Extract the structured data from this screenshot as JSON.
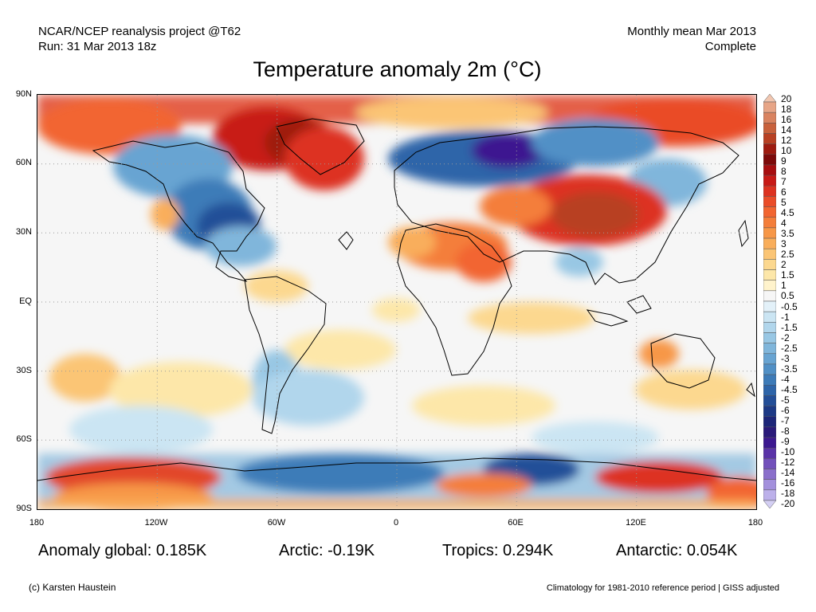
{
  "header": {
    "source": "NCAR/NCEP reanalysis project @T62",
    "run": "Run: 31 Mar 2013 18z",
    "period": "Monthly mean Mar 2013",
    "status": "Complete"
  },
  "title": "Temperature anomaly 2m (°C)",
  "map": {
    "projection": "equirectangular",
    "gridlines": "dotted",
    "lat_labels": [
      "90N",
      "60N",
      "30N",
      "EQ",
      "30S",
      "60S",
      "90S"
    ],
    "lon_labels": [
      "180",
      "120W",
      "60W",
      "0",
      "60E",
      "120E",
      "180"
    ]
  },
  "colorbar": {
    "levels": [
      "20",
      "18",
      "16",
      "14",
      "12",
      "10",
      "9",
      "8",
      "7",
      "6",
      "5",
      "4.5",
      "4",
      "3.5",
      "3",
      "2.5",
      "2",
      "1.5",
      "1",
      "0.5",
      "-0.5",
      "-1",
      "-1.5",
      "-2",
      "-2.5",
      "-3",
      "-3.5",
      "-4",
      "-4.5",
      "-5",
      "-6",
      "-7",
      "-8",
      "-9",
      "-10",
      "-12",
      "-14",
      "-16",
      "-18",
      "-20"
    ],
    "colors": [
      "#f1c6b0",
      "#e7a587",
      "#d98360",
      "#c8613c",
      "#b84023",
      "#9e1b10",
      "#7d0a0a",
      "#a80e10",
      "#c81a16",
      "#dd3220",
      "#ea4c28",
      "#f26530",
      "#f47e3a",
      "#f79747",
      "#f9ae5b",
      "#fbc575",
      "#fcd88f",
      "#fde7a9",
      "#fff3cc",
      "#f6f6f6",
      "#e3f1f9",
      "#cbe5f3",
      "#b1d6ec",
      "#98c7e4",
      "#80b6db",
      "#68a4d2",
      "#5190c6",
      "#3d7bb8",
      "#2e65a9",
      "#244f98",
      "#1d3a86",
      "#1d2679",
      "#2a1a7a",
      "#3c1890",
      "#5a33a8",
      "#7250bb",
      "#8a6fcb",
      "#a390dc",
      "#bcb0ea",
      "#d4cff4"
    ]
  },
  "stats": {
    "global": "Anomaly global: 0.185K",
    "arctic": "Arctic: -0.19K",
    "tropics": "Tropics: 0.294K",
    "antarctic": "Antarctic: 0.054K"
  },
  "footer": {
    "copyright": "(c) Karsten Haustein",
    "note": "Climatology for 1981-2010 reference period | GISS adjusted"
  }
}
